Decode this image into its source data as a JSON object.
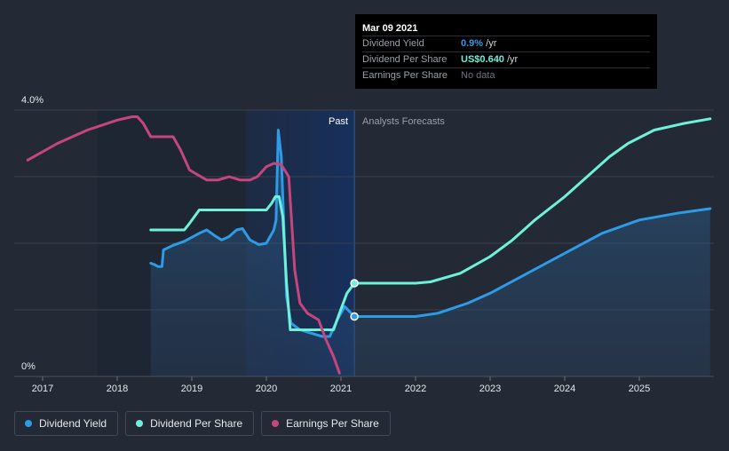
{
  "tooltip": {
    "date": "Mar 09 2021",
    "rows": [
      {
        "key": "Dividend Yield",
        "value": "0.9%",
        "unit": " /yr"
      },
      {
        "key": "Dividend Per Share",
        "value": "US$0.640",
        "unit": " /yr"
      },
      {
        "key": "Earnings Per Share",
        "value": "No data",
        "unit": ""
      }
    ]
  },
  "regions": {
    "past": "Past",
    "forecast": "Analysts Forecasts"
  },
  "legend": [
    {
      "label": "Dividend Yield",
      "color": "#2e9be6"
    },
    {
      "label": "Dividend Per Share",
      "color": "#6ff0d8"
    },
    {
      "label": "Earnings Per Share",
      "color": "#c4467c"
    }
  ],
  "chart_data": {
    "type": "line",
    "title": "",
    "xlabel": "",
    "ylabel": "",
    "xlim": [
      2016.8,
      2025.95
    ],
    "ylim": [
      0,
      4.0
    ],
    "y_tick_labels": [
      "0%",
      "4.0%"
    ],
    "x_ticks": [
      2017,
      2018,
      2019,
      2020,
      2021,
      2022,
      2023,
      2024,
      2025
    ],
    "x_tick_labels": [
      "2017",
      "2018",
      "2019",
      "2020",
      "2021",
      "2022",
      "2023",
      "2024",
      "2025"
    ],
    "gridlines": [
      1.0,
      2.0,
      3.0,
      4.0
    ],
    "past_shade_start": 2020.2,
    "marker_x": 2021.18,
    "series": [
      {
        "name": "Dividend Yield",
        "color": "#2e9be6",
        "filled": true,
        "points": [
          [
            2018.45,
            1.7
          ],
          [
            2018.5,
            1.68
          ],
          [
            2018.55,
            1.65
          ],
          [
            2018.6,
            1.65
          ],
          [
            2018.62,
            1.9
          ],
          [
            2018.75,
            1.97
          ],
          [
            2018.9,
            2.03
          ],
          [
            2019.1,
            2.15
          ],
          [
            2019.2,
            2.2
          ],
          [
            2019.3,
            2.12
          ],
          [
            2019.4,
            2.05
          ],
          [
            2019.5,
            2.1
          ],
          [
            2019.6,
            2.2
          ],
          [
            2019.68,
            2.22
          ],
          [
            2019.78,
            2.05
          ],
          [
            2019.9,
            1.98
          ],
          [
            2020.0,
            2.0
          ],
          [
            2020.1,
            2.2
          ],
          [
            2020.13,
            2.35
          ],
          [
            2020.16,
            3.7
          ],
          [
            2020.2,
            3.3
          ],
          [
            2020.27,
            1.2
          ],
          [
            2020.33,
            0.8
          ],
          [
            2020.45,
            0.7
          ],
          [
            2020.6,
            0.65
          ],
          [
            2020.75,
            0.6
          ],
          [
            2020.85,
            0.6
          ],
          [
            2020.95,
            0.85
          ],
          [
            2021.05,
            1.05
          ],
          [
            2021.18,
            0.9
          ],
          [
            2021.5,
            0.9
          ],
          [
            2022.0,
            0.9
          ],
          [
            2022.3,
            0.95
          ],
          [
            2022.7,
            1.1
          ],
          [
            2023.0,
            1.25
          ],
          [
            2023.5,
            1.55
          ],
          [
            2024.0,
            1.85
          ],
          [
            2024.5,
            2.15
          ],
          [
            2025.0,
            2.35
          ],
          [
            2025.5,
            2.45
          ],
          [
            2025.95,
            2.52
          ]
        ]
      },
      {
        "name": "Dividend Per Share",
        "color": "#6ff0d8",
        "filled": false,
        "points": [
          [
            2018.45,
            2.2
          ],
          [
            2018.9,
            2.2
          ],
          [
            2018.97,
            2.3
          ],
          [
            2019.1,
            2.5
          ],
          [
            2020.0,
            2.5
          ],
          [
            2020.07,
            2.6
          ],
          [
            2020.12,
            2.7
          ],
          [
            2020.17,
            2.7
          ],
          [
            2020.22,
            2.4
          ],
          [
            2020.27,
            1.4
          ],
          [
            2020.32,
            0.7
          ],
          [
            2020.45,
            0.7
          ],
          [
            2020.9,
            0.7
          ],
          [
            2020.98,
            0.95
          ],
          [
            2021.08,
            1.25
          ],
          [
            2021.18,
            1.4
          ],
          [
            2021.5,
            1.4
          ],
          [
            2022.0,
            1.4
          ],
          [
            2022.2,
            1.42
          ],
          [
            2022.6,
            1.55
          ],
          [
            2023.0,
            1.8
          ],
          [
            2023.3,
            2.05
          ],
          [
            2023.6,
            2.35
          ],
          [
            2024.0,
            2.7
          ],
          [
            2024.3,
            3.0
          ],
          [
            2024.6,
            3.3
          ],
          [
            2024.85,
            3.5
          ],
          [
            2025.2,
            3.7
          ],
          [
            2025.6,
            3.8
          ],
          [
            2025.95,
            3.87
          ]
        ]
      },
      {
        "name": "Earnings Per Share",
        "color": "#c4467c",
        "filled": false,
        "points": [
          [
            2016.8,
            3.25
          ],
          [
            2017.2,
            3.5
          ],
          [
            2017.6,
            3.7
          ],
          [
            2018.0,
            3.85
          ],
          [
            2018.2,
            3.9
          ],
          [
            2018.27,
            3.9
          ],
          [
            2018.35,
            3.8
          ],
          [
            2018.45,
            3.6
          ],
          [
            2018.75,
            3.6
          ],
          [
            2018.85,
            3.4
          ],
          [
            2018.97,
            3.1
          ],
          [
            2019.2,
            2.95
          ],
          [
            2019.35,
            2.95
          ],
          [
            2019.5,
            3.0
          ],
          [
            2019.65,
            2.95
          ],
          [
            2019.78,
            2.95
          ],
          [
            2019.88,
            3.0
          ],
          [
            2020.0,
            3.15
          ],
          [
            2020.1,
            3.2
          ],
          [
            2020.2,
            3.18
          ],
          [
            2020.3,
            3.0
          ],
          [
            2020.38,
            1.6
          ],
          [
            2020.45,
            1.1
          ],
          [
            2020.55,
            0.95
          ],
          [
            2020.7,
            0.85
          ],
          [
            2020.8,
            0.55
          ],
          [
            2020.9,
            0.3
          ],
          [
            2020.98,
            0.05
          ]
        ]
      }
    ]
  }
}
